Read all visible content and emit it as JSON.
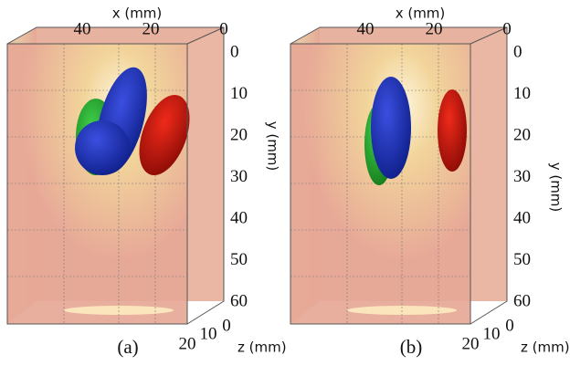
{
  "panels": [
    {
      "caption": "(a)",
      "x_axis": {
        "label": "x (mm)",
        "ticks": [
          "40",
          "20",
          "0"
        ]
      },
      "y_axis": {
        "label": "y (mm)",
        "ticks": [
          "0",
          "10",
          "20",
          "30",
          "40",
          "50",
          "60"
        ]
      },
      "z_axis": {
        "label": "z (mm)",
        "ticks": [
          "20",
          "10",
          "0"
        ]
      }
    },
    {
      "caption": "(b)",
      "x_axis": {
        "label": "x (mm)",
        "ticks": [
          "40",
          "20",
          "0"
        ]
      },
      "y_axis": {
        "label": "y (mm)",
        "ticks": [
          "0",
          "10",
          "20",
          "30",
          "40",
          "50",
          "60"
        ]
      },
      "z_axis": {
        "label": "z (mm)",
        "ticks": [
          "20",
          "10",
          "0"
        ]
      }
    }
  ]
}
